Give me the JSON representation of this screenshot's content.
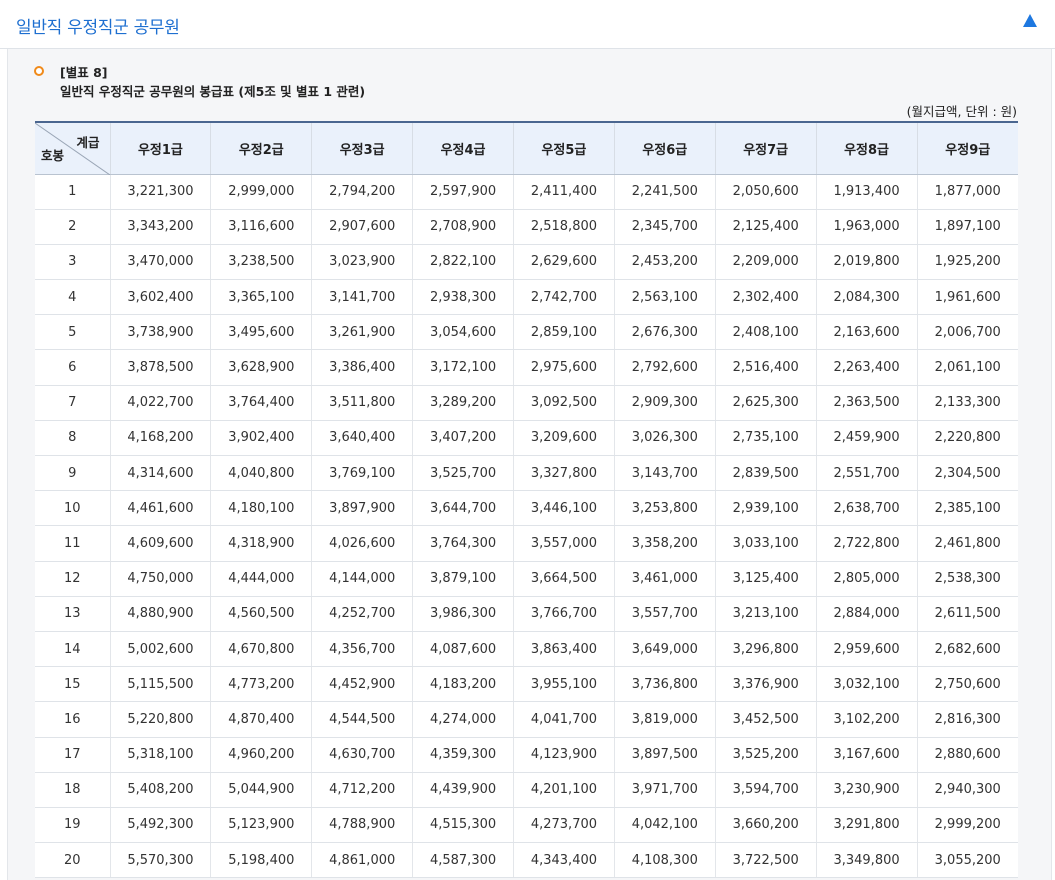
{
  "header": {
    "title": "일반직 우정직군 공무원"
  },
  "caption": {
    "line1": "[별표 8]",
    "line2": "일반직 우정직군 공무원의 봉급표 (제5조 및 별표 1 관련)"
  },
  "unit_note": "(월지급액, 단위 : 원)",
  "table": {
    "corner_top": "계급",
    "corner_bottom": "호봉",
    "columns": [
      "우정1급",
      "우정2급",
      "우정3급",
      "우정4급",
      "우정5급",
      "우정6급",
      "우정7급",
      "우정8급",
      "우정9급"
    ],
    "rows": [
      [
        "1",
        "3,221,300",
        "2,999,000",
        "2,794,200",
        "2,597,900",
        "2,411,400",
        "2,241,500",
        "2,050,600",
        "1,913,400",
        "1,877,000"
      ],
      [
        "2",
        "3,343,200",
        "3,116,600",
        "2,907,600",
        "2,708,900",
        "2,518,800",
        "2,345,700",
        "2,125,400",
        "1,963,000",
        "1,897,100"
      ],
      [
        "3",
        "3,470,000",
        "3,238,500",
        "3,023,900",
        "2,822,100",
        "2,629,600",
        "2,453,200",
        "2,209,000",
        "2,019,800",
        "1,925,200"
      ],
      [
        "4",
        "3,602,400",
        "3,365,100",
        "3,141,700",
        "2,938,300",
        "2,742,700",
        "2,563,100",
        "2,302,400",
        "2,084,300",
        "1,961,600"
      ],
      [
        "5",
        "3,738,900",
        "3,495,600",
        "3,261,900",
        "3,054,600",
        "2,859,100",
        "2,676,300",
        "2,408,100",
        "2,163,600",
        "2,006,700"
      ],
      [
        "6",
        "3,878,500",
        "3,628,900",
        "3,386,400",
        "3,172,100",
        "2,975,600",
        "2,792,600",
        "2,516,400",
        "2,263,400",
        "2,061,100"
      ],
      [
        "7",
        "4,022,700",
        "3,764,400",
        "3,511,800",
        "3,289,200",
        "3,092,500",
        "2,909,300",
        "2,625,300",
        "2,363,500",
        "2,133,300"
      ],
      [
        "8",
        "4,168,200",
        "3,902,400",
        "3,640,400",
        "3,407,200",
        "3,209,600",
        "3,026,300",
        "2,735,100",
        "2,459,900",
        "2,220,800"
      ],
      [
        "9",
        "4,314,600",
        "4,040,800",
        "3,769,100",
        "3,525,700",
        "3,327,800",
        "3,143,700",
        "2,839,500",
        "2,551,700",
        "2,304,500"
      ],
      [
        "10",
        "4,461,600",
        "4,180,100",
        "3,897,900",
        "3,644,700",
        "3,446,100",
        "3,253,800",
        "2,939,100",
        "2,638,700",
        "2,385,100"
      ],
      [
        "11",
        "4,609,600",
        "4,318,900",
        "4,026,600",
        "3,764,300",
        "3,557,000",
        "3,358,200",
        "3,033,100",
        "2,722,800",
        "2,461,800"
      ],
      [
        "12",
        "4,750,000",
        "4,444,000",
        "4,144,000",
        "3,879,100",
        "3,664,500",
        "3,461,000",
        "3,125,400",
        "2,805,000",
        "2,538,300"
      ],
      [
        "13",
        "4,880,900",
        "4,560,500",
        "4,252,700",
        "3,986,300",
        "3,766,700",
        "3,557,700",
        "3,213,100",
        "2,884,000",
        "2,611,500"
      ],
      [
        "14",
        "5,002,600",
        "4,670,800",
        "4,356,700",
        "4,087,600",
        "3,863,400",
        "3,649,000",
        "3,296,800",
        "2,959,600",
        "2,682,600"
      ],
      [
        "15",
        "5,115,500",
        "4,773,200",
        "4,452,900",
        "4,183,200",
        "3,955,100",
        "3,736,800",
        "3,376,900",
        "3,032,100",
        "2,750,600"
      ],
      [
        "16",
        "5,220,800",
        "4,870,400",
        "4,544,500",
        "4,274,000",
        "4,041,700",
        "3,819,000",
        "3,452,500",
        "3,102,200",
        "2,816,300"
      ],
      [
        "17",
        "5,318,100",
        "4,960,200",
        "4,630,700",
        "4,359,300",
        "4,123,900",
        "3,897,500",
        "3,525,200",
        "3,167,600",
        "2,880,600"
      ],
      [
        "18",
        "5,408,200",
        "5,044,900",
        "4,712,200",
        "4,439,900",
        "4,201,100",
        "3,971,700",
        "3,594,700",
        "3,230,900",
        "2,940,300"
      ],
      [
        "19",
        "5,492,300",
        "5,123,900",
        "4,788,900",
        "4,515,300",
        "4,273,700",
        "4,042,100",
        "3,660,200",
        "3,291,800",
        "2,999,200"
      ],
      [
        "20",
        "5,570,300",
        "5,198,400",
        "4,861,000",
        "4,587,300",
        "4,343,400",
        "4,108,300",
        "3,722,500",
        "3,349,800",
        "3,055,200"
      ]
    ]
  }
}
